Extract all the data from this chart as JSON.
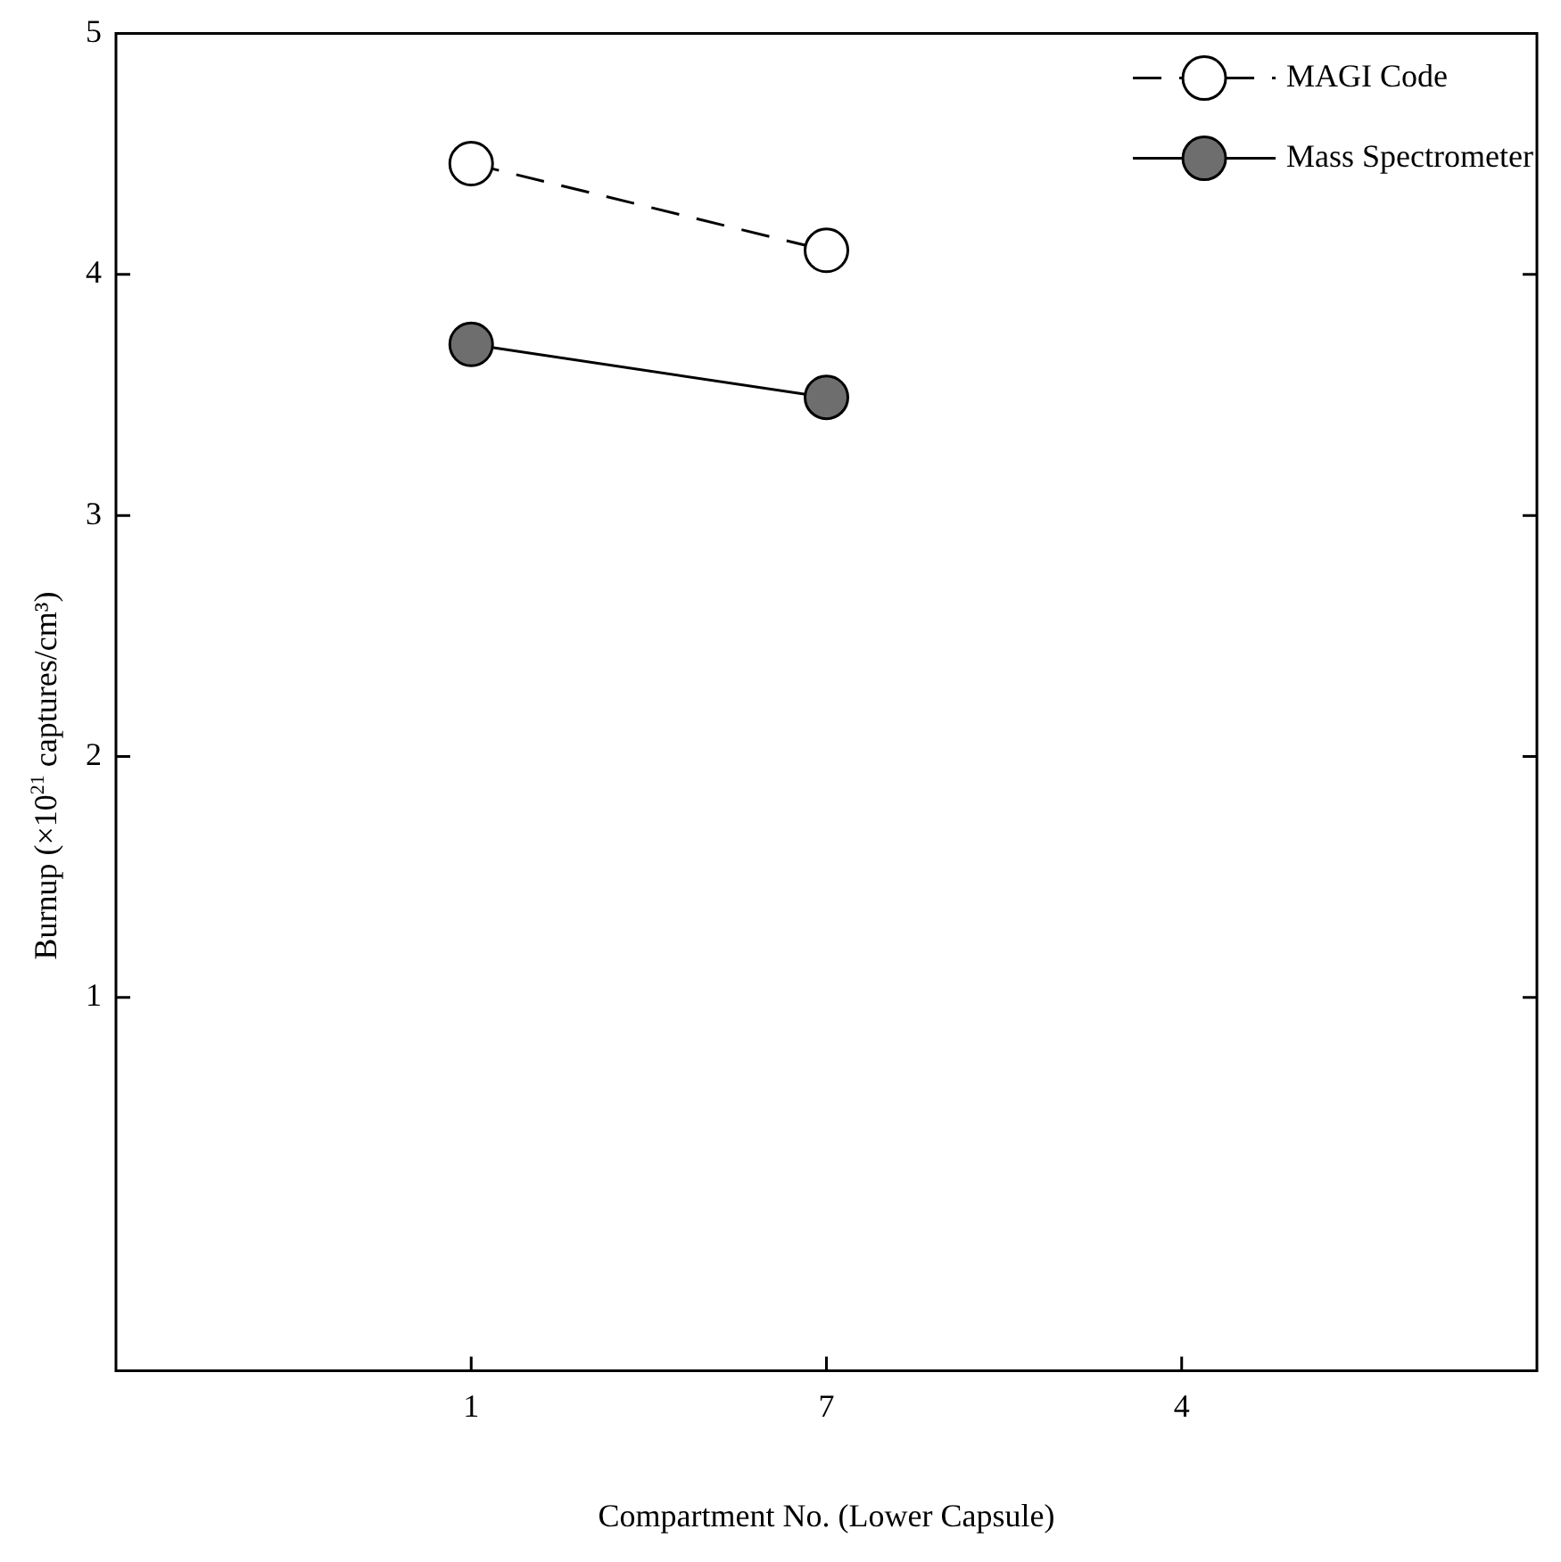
{
  "chart_data": {
    "type": "line",
    "xlabel": "Compartment No. (Lower Capsule)",
    "ylabel": "Burnup (×10$^{21}$ captures/cm³)",
    "categories": [
      "1",
      "7",
      "4"
    ],
    "series": [
      {
        "name": "MAGI Code",
        "color": "#ffffff",
        "values": [
          4.46,
          4.1,
          null
        ],
        "line_style": "dashed",
        "marker": "circle"
      },
      {
        "name": "Mass Spectrometer",
        "color": "#6e6e6e",
        "values": [
          3.71,
          3.49,
          null
        ],
        "line_style": "solid",
        "marker": "circle"
      }
    ],
    "ylim": [
      -0.55,
      5
    ],
    "yticks": [
      1,
      2,
      3,
      4,
      5
    ],
    "grid": false,
    "legend": "top right"
  }
}
